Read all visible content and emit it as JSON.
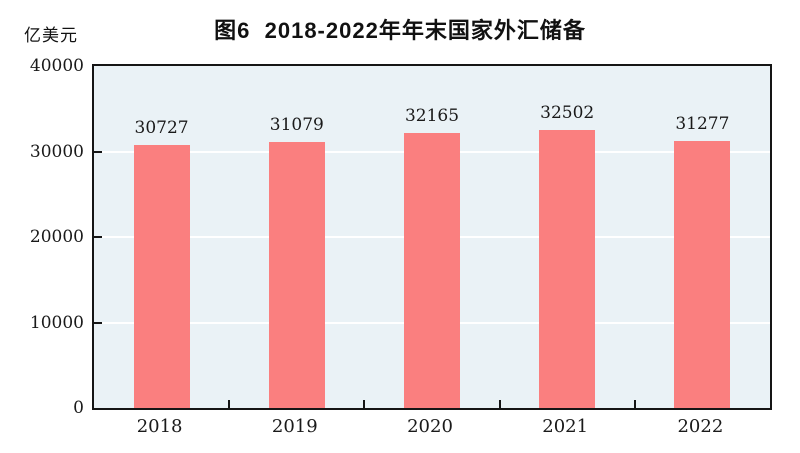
{
  "header": {
    "title": "图6  2018-2022年年末国家外汇储备",
    "unit_label": "亿美元"
  },
  "chart_data": {
    "type": "bar",
    "title": "图6 2018-2022年年末国家外汇储备",
    "categories": [
      "2018",
      "2019",
      "2020",
      "2021",
      "2022"
    ],
    "values": [
      30727,
      31079,
      32165,
      32502,
      31277
    ],
    "data_labels": [
      "30727",
      "31079",
      "32165",
      "32502",
      "31277"
    ],
    "xlabel": "",
    "ylabel": "亿美元",
    "ylim": [
      0,
      40000
    ],
    "yticks": [
      0,
      10000,
      20000,
      30000,
      40000
    ],
    "ytick_labels": [
      "0",
      "10000",
      "20000",
      "30000",
      "40000"
    ],
    "grid": true,
    "legend": "none",
    "bar_color": "#FA7F7F",
    "plot_background": "#EAF2F6",
    "gridline_color": "#FFFFFF",
    "frame_color": "#151515"
  }
}
